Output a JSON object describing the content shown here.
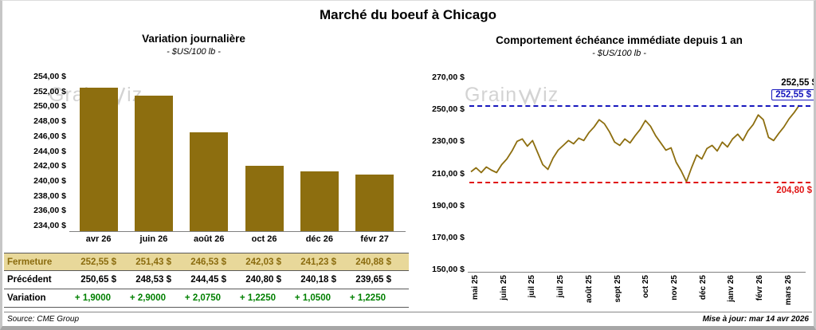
{
  "page": {
    "title": "Marché du boeuf à Chicago",
    "source": "Source: CME Group",
    "updated": "Mise à jour: mar 14 avr 2026"
  },
  "watermark": {
    "prefix": "Grain",
    "suffix": "iz"
  },
  "colors": {
    "gold": "#8d6e0f",
    "fermeture_bg": "#e8d89a",
    "fermeture_text": "#8a6b0e",
    "green": "#008000",
    "blue": "#1717bd",
    "red": "#e01515",
    "watermark_gray": "#cccccc"
  },
  "chart_data": [
    {
      "type": "bar",
      "title": "Variation journalière",
      "subtitle": "- $US/100 lb -",
      "categories": [
        "avr 26",
        "juin 26",
        "août 26",
        "oct 26",
        "déc 26",
        "févr 27"
      ],
      "values": [
        252.55,
        251.43,
        246.53,
        242.03,
        241.23,
        240.88
      ],
      "ylim": [
        234,
        254
      ],
      "ytick_step": 2,
      "ytick_labels": [
        "254,00 $",
        "252,00 $",
        "250,00 $",
        "248,00 $",
        "246,00 $",
        "244,00 $",
        "242,00 $",
        "240,00 $",
        "238,00 $",
        "236,00 $",
        "234,00 $"
      ],
      "grid": false,
      "legend": "none"
    },
    {
      "type": "line",
      "title": "Comportement échéance immédiate depuis 1 an",
      "subtitle": "- $US/100 lb -",
      "x_labels": [
        "mai 25",
        "juin 25",
        "juil 25",
        "juil 25",
        "août 25",
        "sept 25",
        "oct 25",
        "nov 25",
        "déc 25",
        "janv 26",
        "févr 26",
        "mars 26"
      ],
      "values": [
        211,
        213.5,
        210.5,
        214,
        212,
        210.5,
        215.5,
        219,
        224,
        230,
        231.5,
        227,
        230.5,
        223,
        215.5,
        212.5,
        219.5,
        224.5,
        227.5,
        230.5,
        228.5,
        232,
        230.5,
        235.5,
        239,
        243.5,
        241,
        236,
        229.5,
        227.5,
        231.5,
        229,
        233.5,
        237.5,
        243,
        239.5,
        233.5,
        229,
        224.5,
        226,
        217,
        211.5,
        204.8,
        213.5,
        221.5,
        219,
        225.5,
        227.5,
        224,
        229.5,
        226.5,
        231.5,
        234.5,
        230.5,
        236.5,
        240.5,
        246.5,
        243.5,
        232.5,
        230.5,
        235,
        239,
        244,
        248,
        252.55
      ],
      "ylim": [
        150,
        270
      ],
      "ytick_step": 20,
      "ytick_labels": [
        "270,00 $",
        "250,00 $",
        "230,00 $",
        "210,00 $",
        "190,00 $",
        "170,00 $",
        "150,00 $"
      ],
      "reference_lines": [
        {
          "value": 252.55,
          "label": "252,55 $",
          "style": "high"
        },
        {
          "value": 204.8,
          "label": "204,80 $",
          "style": "low"
        }
      ],
      "last_point_label": "252,55 $",
      "grid": false,
      "legend": "none"
    }
  ],
  "table": {
    "rows": [
      {
        "label": "Fermeture",
        "style": "fermeture",
        "values": [
          "252,55 $",
          "251,43 $",
          "246,53 $",
          "242,03 $",
          "241,23 $",
          "240,88 $"
        ]
      },
      {
        "label": "Précédent",
        "style": "precedent",
        "values": [
          "250,65 $",
          "248,53 $",
          "244,45 $",
          "240,80 $",
          "240,18 $",
          "239,65 $"
        ]
      },
      {
        "label": "Variation",
        "style": "variation",
        "values": [
          "+ 1,9000",
          "+ 2,9000",
          "+ 2,0750",
          "+ 1,2250",
          "+ 1,0500",
          "+ 1,2250"
        ]
      }
    ]
  }
}
